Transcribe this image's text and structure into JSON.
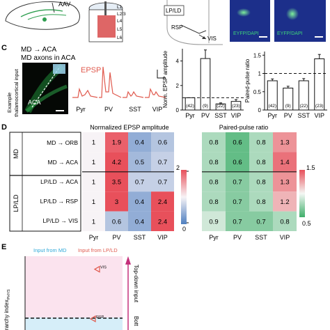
{
  "top_row": {
    "aav_label": "AAV",
    "layers": [
      "L1",
      "L2/3",
      "L4",
      "L5",
      "L6"
    ],
    "lp_ld_label": "LP/LD",
    "rsp_label": "RSP",
    "vis_label": "VIS",
    "micro1_label": "EYFP/DAPI",
    "micro2_label": "EYFP/DAPI"
  },
  "panel_c": {
    "letter": "C",
    "title_line1": "MD → ACA",
    "title_line2": "MD axons in ACA",
    "side_label_line1": "Example",
    "side_label_line2": "thalamocortical input",
    "aca_label": "ACA",
    "epsp_label": "EPSP",
    "trace_labels": [
      "Pyr",
      "PV",
      "SST",
      "VIP"
    ]
  },
  "panel_d": {
    "letter": "D",
    "heat_title_left": "Normalized EPSP amplitude",
    "heat_title_right": "Paired-pulse ratio",
    "group_labels": [
      "MD",
      "LP/LD"
    ],
    "row_labels": [
      "MD → ORB",
      "MD → ACA",
      "LP/LD → ACA",
      "LP/LD → RSP",
      "LP/LD → VIS"
    ],
    "col_labels": [
      "Pyr",
      "PV",
      "SST",
      "VIP"
    ],
    "cbar_left": {
      "max_label": "2",
      "min_label": "0"
    },
    "cbar_right": {
      "max_label": "1.5",
      "min_label": "0.5"
    }
  },
  "panel_e": {
    "letter": "E",
    "legend_md": "Input from MD",
    "legend_lpld": "Input from LP/LD",
    "ylabel": "rarchy index",
    "ylabel_sub": "PHYS",
    "topdown": "Top-down input",
    "bottom": "Bott",
    "point_labels": [
      "VIS",
      "RSP"
    ]
  },
  "colors": {
    "high_red": "#e8505b",
    "low_blue": "#4f7fc0",
    "high_pink": "#e8505b",
    "low_green": "#3fae6a",
    "md_cyan": "#2ea8d8",
    "lpld_red": "#e05a4e",
    "arrow_magenta": "#c4307a"
  },
  "chart_data": [
    {
      "type": "bar",
      "ylabel": "Norm. EPSP amplitude",
      "categories": [
        "Pyr",
        "PV",
        "SST",
        "VIP"
      ],
      "values": [
        1.0,
        4.2,
        0.5,
        0.7
      ],
      "errors": [
        0.0,
        0.7,
        0.08,
        0.15
      ],
      "n_labels": [
        "(42)",
        "(9)",
        "(22)",
        "(23)"
      ],
      "yticks": [
        0,
        2,
        4
      ],
      "ylim": [
        0,
        5
      ],
      "dashed_line": 1
    },
    {
      "type": "bar",
      "ylabel": "Paired-pulse ratio",
      "categories": [
        "Pyr",
        "PV",
        "SST",
        "VIP"
      ],
      "values": [
        0.8,
        0.6,
        0.8,
        1.4
      ],
      "errors": [
        0.05,
        0.05,
        0.06,
        0.12
      ],
      "n_labels": [
        "(42)",
        "(9)",
        "(22)",
        "(23)"
      ],
      "yticks": [
        0,
        0.5,
        1,
        1.5
      ],
      "ylim": [
        0,
        1.6
      ],
      "dashed_line": 1
    },
    {
      "type": "heatmap",
      "title": "Normalized EPSP amplitude",
      "rows": [
        "MD → ORB",
        "MD → ACA",
        "LP/LD → ACA",
        "LP/LD → RSP",
        "LP/LD → VIS"
      ],
      "cols": [
        "Pyr",
        "PV",
        "SST",
        "VIP"
      ],
      "values": [
        [
          1,
          1.9,
          0.4,
          0.6
        ],
        [
          1,
          4.2,
          0.5,
          0.7
        ],
        [
          1,
          3.5,
          0.7,
          0.7
        ],
        [
          1,
          3,
          0.4,
          2.4
        ],
        [
          1,
          0.6,
          0.4,
          2.4
        ]
      ],
      "vmin": 0,
      "vmax": 2,
      "center": 1
    },
    {
      "type": "heatmap",
      "title": "Paired-pulse ratio",
      "rows": [
        "MD → ORB",
        "MD → ACA",
        "LP/LD → ACA",
        "LP/LD → RSP",
        "LP/LD → VIS"
      ],
      "cols": [
        "Pyr",
        "PV",
        "SST",
        "VIP"
      ],
      "values": [
        [
          0.8,
          0.6,
          0.8,
          1.3
        ],
        [
          0.8,
          0.6,
          0.8,
          1.4
        ],
        [
          0.8,
          0.7,
          0.8,
          1.3
        ],
        [
          0.8,
          0.7,
          0.8,
          1.2
        ],
        [
          0.9,
          0.7,
          0.7,
          0.8
        ]
      ],
      "vmin": 0.5,
      "vmax": 1.5,
      "center": 1
    },
    {
      "type": "scatter",
      "points": [
        {
          "label": "VIS",
          "y": 0.62
        },
        {
          "label": "RSP",
          "y": -0.13
        }
      ],
      "reference_line": -0.12
    }
  ]
}
